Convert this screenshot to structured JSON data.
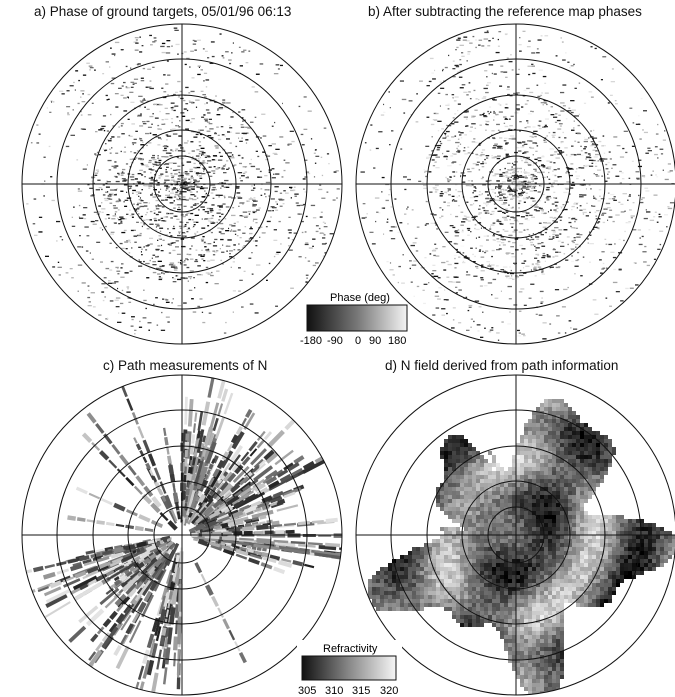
{
  "panels": {
    "a": {
      "title": "a) Phase of ground targets, 05/01/96 06:13"
    },
    "b": {
      "title": "b) After subtracting the reference map phases"
    },
    "c": {
      "title": "c) Path measurements of N"
    },
    "d": {
      "title": "d) N field derived from path information"
    }
  },
  "colorbars": {
    "phase": {
      "title": "Phase (deg)",
      "ticks": [
        "-180",
        "-90",
        "0",
        "90",
        "180"
      ]
    },
    "refractivity": {
      "title": "Refractivity",
      "ticks": [
        "305",
        "310",
        "315",
        "320"
      ]
    }
  }
}
